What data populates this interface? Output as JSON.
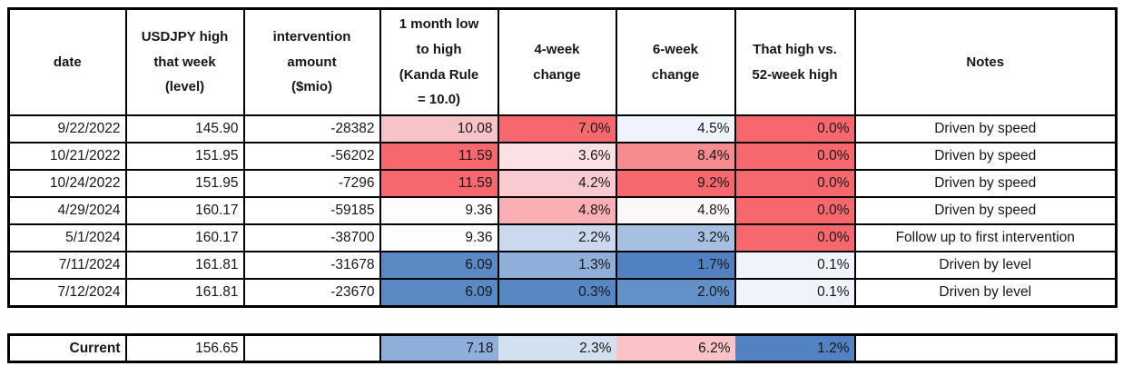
{
  "table": {
    "columns": [
      {
        "key": "date",
        "label": "date"
      },
      {
        "key": "level",
        "label": "USDJPY high\nthat week\n(level)"
      },
      {
        "key": "amount",
        "label": "intervention\namount\n($mio)"
      },
      {
        "key": "range",
        "label": "1 month low\nto high\n(Kanda Rule\n= 10.0)"
      },
      {
        "key": "wk4",
        "label": "4-week\nchange"
      },
      {
        "key": "wk6",
        "label": "6-week\nchange"
      },
      {
        "key": "high52",
        "label": "That high vs.\n52-week high"
      },
      {
        "key": "note",
        "label": "Notes"
      }
    ],
    "rows": [
      {
        "date": "9/22/2022",
        "level": "145.90",
        "amount": "-28382",
        "range": {
          "v": "10.08",
          "bg": "#F6C3C8"
        },
        "wk4": {
          "v": "7.0%",
          "bg": "#F6686D"
        },
        "wk6": {
          "v": "4.5%",
          "bg": "#EFF3FB"
        },
        "high52": {
          "v": "0.0%",
          "bg": "#F6686D"
        },
        "note": "Driven by speed"
      },
      {
        "date": "10/21/2022",
        "level": "151.95",
        "amount": "-56202",
        "range": {
          "v": "11.59",
          "bg": "#F6686D"
        },
        "wk4": {
          "v": "3.6%",
          "bg": "#FBE1E3"
        },
        "wk6": {
          "v": "8.4%",
          "bg": "#F68C90"
        },
        "high52": {
          "v": "0.0%",
          "bg": "#F6686D"
        },
        "note": "Driven by speed"
      },
      {
        "date": "10/24/2022",
        "level": "151.95",
        "amount": "-7296",
        "range": {
          "v": "11.59",
          "bg": "#F6686D"
        },
        "wk4": {
          "v": "4.2%",
          "bg": "#F9CBD0"
        },
        "wk6": {
          "v": "9.2%",
          "bg": "#F6686D"
        },
        "high52": {
          "v": "0.0%",
          "bg": "#F6686D"
        },
        "note": "Driven by speed"
      },
      {
        "date": "4/29/2024",
        "level": "160.17",
        "amount": "-59185",
        "range": {
          "v": "9.36",
          "bg": "#FDFCFE"
        },
        "wk4": {
          "v": "4.8%",
          "bg": "#F9AFB4"
        },
        "wk6": {
          "v": "4.8%",
          "bg": "#FCF8FA"
        },
        "high52": {
          "v": "0.0%",
          "bg": "#F6686D"
        },
        "note": "Driven by speed"
      },
      {
        "date": "5/1/2024",
        "level": "160.17",
        "amount": "-38700",
        "range": {
          "v": "9.36",
          "bg": "#FDFCFE"
        },
        "wk4": {
          "v": "2.2%",
          "bg": "#CBD9EE"
        },
        "wk6": {
          "v": "3.2%",
          "bg": "#A7BFE1"
        },
        "high52": {
          "v": "0.0%",
          "bg": "#F6686D"
        },
        "note": "Follow up to first intervention"
      },
      {
        "date": "7/11/2024",
        "level": "161.81",
        "amount": "-31678",
        "range": {
          "v": "6.09",
          "bg": "#5B89C4"
        },
        "wk4": {
          "v": "1.3%",
          "bg": "#8FAED9"
        },
        "wk6": {
          "v": "1.7%",
          "bg": "#5181C0"
        },
        "high52": {
          "v": "0.1%",
          "bg": "#EFF3FA"
        },
        "note": "Driven by level"
      },
      {
        "date": "7/12/2024",
        "level": "161.81",
        "amount": "-23670",
        "range": {
          "v": "6.09",
          "bg": "#5B89C4"
        },
        "wk4": {
          "v": "0.3%",
          "bg": "#5887C3"
        },
        "wk6": {
          "v": "2.0%",
          "bg": "#6290C9"
        },
        "high52": {
          "v": "0.1%",
          "bg": "#EFF3FA"
        },
        "note": "Driven by level"
      }
    ],
    "current": {
      "label": "Current",
      "level": "156.65",
      "amount": "",
      "range": {
        "v": "7.18",
        "bg": "#8FAFDA"
      },
      "wk4": {
        "v": "2.3%",
        "bg": "#D3E0F0"
      },
      "wk6": {
        "v": "6.2%",
        "bg": "#F9C3C8"
      },
      "high52": {
        "v": "1.2%",
        "bg": "#5282C1"
      },
      "note": ""
    },
    "colors": {
      "border": "#000000",
      "text": "#171717",
      "scale_red": "#F6686D",
      "scale_white": "#FCFCFF",
      "scale_blue": "#5B89C4"
    }
  }
}
